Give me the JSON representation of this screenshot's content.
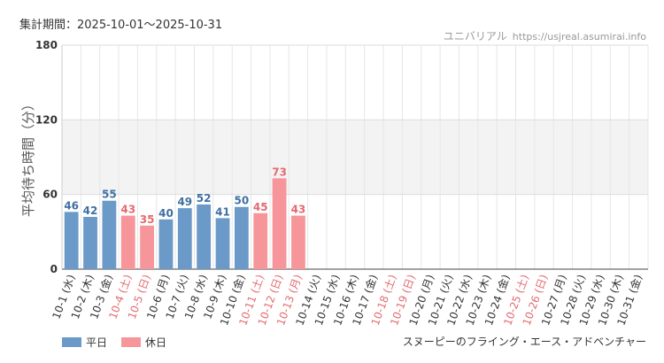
{
  "header": {
    "period": "集計期間：2025-10-01〜2025-10-31",
    "site_name": "ユニバリアル",
    "site_url": "https://usjreal.asumirai.info"
  },
  "footer": {
    "attraction": "スヌーピーのフライング・エース・アドベンチャー"
  },
  "legend": {
    "weekday": "平日",
    "holiday": "休日"
  },
  "colors": {
    "weekday": "#6b9ac8",
    "holiday": "#f7969a",
    "weekday_text": "#3f6fa3",
    "holiday_text": "#e46a70",
    "band": "#f3f3f3"
  },
  "chart_data": {
    "type": "bar",
    "ylabel": "平均待ち時間（分）",
    "ylim": [
      0,
      180
    ],
    "yticks": [
      0,
      60,
      120,
      180
    ],
    "shaded_band": [
      60,
      120
    ],
    "grid": true,
    "legend_position": "bottom-left",
    "categories": [
      "10-1 (水)",
      "10-2 (木)",
      "10-3 (金)",
      "10-4 (土)",
      "10-5 (日)",
      "10-6 (月)",
      "10-7 (火)",
      "10-8 (水)",
      "10-9 (木)",
      "10-10 (金)",
      "10-11 (土)",
      "10-12 (日)",
      "10-13 (月)",
      "10-14 (火)",
      "10-15 (水)",
      "10-16 (木)",
      "10-17 (金)",
      "10-18 (土)",
      "10-19 (日)",
      "10-20 (月)",
      "10-21 (火)",
      "10-22 (水)",
      "10-23 (木)",
      "10-24 (金)",
      "10-25 (土)",
      "10-26 (日)",
      "10-27 (月)",
      "10-28 (火)",
      "10-29 (水)",
      "10-30 (木)",
      "10-31 (金)"
    ],
    "holiday": [
      false,
      false,
      false,
      true,
      true,
      false,
      false,
      false,
      false,
      false,
      true,
      true,
      true,
      false,
      false,
      false,
      false,
      true,
      true,
      false,
      false,
      false,
      false,
      false,
      true,
      true,
      false,
      false,
      false,
      false,
      false
    ],
    "values": [
      46,
      42,
      55,
      43,
      35,
      40,
      49,
      52,
      41,
      50,
      45,
      73,
      43,
      null,
      null,
      null,
      null,
      null,
      null,
      null,
      null,
      null,
      null,
      null,
      null,
      null,
      null,
      null,
      null,
      null,
      null
    ]
  }
}
